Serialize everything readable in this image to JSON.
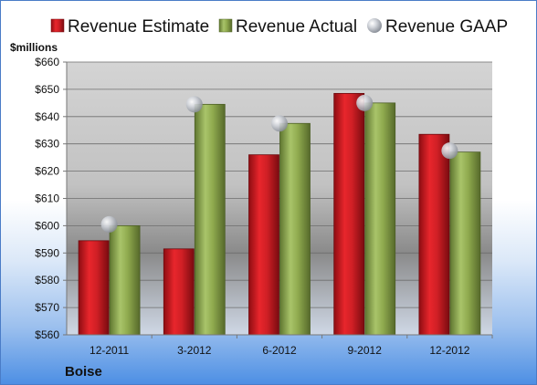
{
  "chart_data": {
    "type": "bar",
    "categories": [
      "12-2011",
      "3-2012",
      "6-2012",
      "9-2012",
      "12-2012"
    ],
    "series": [
      {
        "name": "Revenue Estimate",
        "kind": "bar",
        "color": "#d01f25",
        "values": [
          594.5,
          591.5,
          626,
          648.5,
          633.5
        ]
      },
      {
        "name": "Revenue Actual",
        "kind": "bar",
        "color": "#8faa4e",
        "values": [
          600,
          644.5,
          637.5,
          645,
          627
        ]
      },
      {
        "name": "Revenue GAAP",
        "kind": "marker",
        "color": "#b8bcc4",
        "values": [
          600.5,
          644.5,
          637.5,
          645,
          627.5
        ]
      }
    ],
    "ylabel": "$millions",
    "ylim": [
      560,
      660
    ],
    "yticks": [
      560,
      570,
      580,
      590,
      600,
      610,
      620,
      630,
      640,
      650,
      660
    ],
    "ytick_labels": [
      "$560",
      "$570",
      "$580",
      "$590",
      "$600",
      "$610",
      "$620",
      "$630",
      "$640",
      "$650",
      "$660"
    ],
    "grid": true,
    "legend_position": "top",
    "company": "Boise"
  }
}
